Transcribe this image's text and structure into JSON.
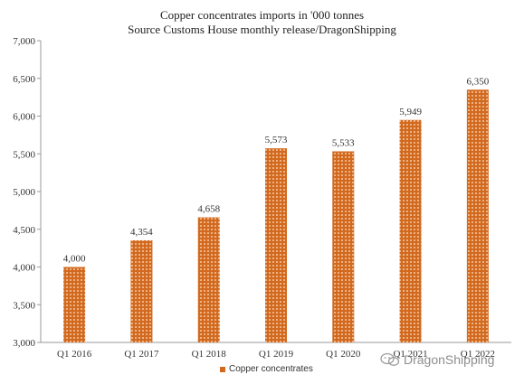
{
  "chart_data": {
    "type": "bar",
    "title": "Copper concentrates imports in '000 tonnes",
    "subtitle": "Source Customs House monthly release/DragonShipping",
    "categories": [
      "Q1 2016",
      "Q1 2017",
      "Q1 2018",
      "Q1 2019",
      "Q1 2020",
      "Q1 2021",
      "Q1 2022"
    ],
    "series": [
      {
        "name": "Copper concentrates",
        "values": [
          4000,
          4354,
          4658,
          5573,
          5533,
          5949,
          6350
        ]
      }
    ],
    "data_labels": [
      "4,000",
      "4,354",
      "4,658",
      "5,573",
      "5,533",
      "5,949",
      "6,350"
    ],
    "ylim": [
      3000,
      7000
    ],
    "yticks": [
      3000,
      3500,
      4000,
      4500,
      5000,
      5500,
      6000,
      6500,
      7000
    ],
    "ytick_labels": [
      "3,000",
      "3,500",
      "4,000",
      "4,500",
      "5,000",
      "5,500",
      "6,000",
      "6,500",
      "7,000"
    ],
    "grid": false,
    "legend": "bottom",
    "bar_color": "#d2691e",
    "bar_dot_color": "#f4c7a0"
  },
  "watermark": {
    "text": "DragonShipping",
    "icon": "wechat-icon"
  }
}
